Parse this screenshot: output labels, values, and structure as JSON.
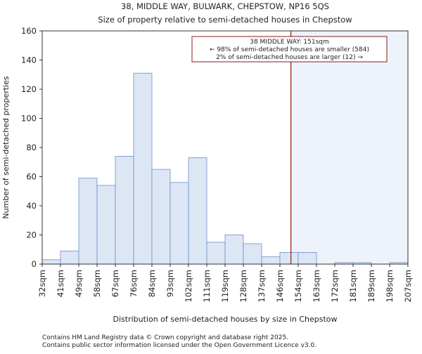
{
  "chart_data": {
    "type": "bar",
    "title": "38, MIDDLE WAY, BULWARK, CHEPSTOW, NP16 5QS",
    "subtitle": "Size of property relative to semi-detached houses in Chepstow",
    "xlabel": "Distribution of semi-detached houses by size in Chepstow",
    "ylabel": "Number of semi-detached properties",
    "ylim": [
      0,
      160
    ],
    "yticks": [
      0,
      20,
      40,
      60,
      80,
      100,
      120,
      140,
      160
    ],
    "xtick_labels": [
      "32sqm",
      "41sqm",
      "49sqm",
      "58sqm",
      "67sqm",
      "76sqm",
      "84sqm",
      "93sqm",
      "102sqm",
      "111sqm",
      "119sqm",
      "128sqm",
      "137sqm",
      "146sqm",
      "154sqm",
      "163sqm",
      "172sqm",
      "181sqm",
      "189sqm",
      "198sqm",
      "207sqm"
    ],
    "values": [
      3,
      9,
      59,
      54,
      74,
      131,
      65,
      56,
      73,
      15,
      20,
      14,
      5,
      8,
      8,
      0,
      1,
      1,
      0,
      1
    ],
    "marker_value_index": 13.6,
    "marker_label": "38 MIDDLE WAY: 151sqm",
    "annotation_lines": [
      "38 MIDDLE WAY: 151sqm",
      "← 98% of semi-detached houses are smaller (584)",
      "2% of semi-detached houses are larger (12) →"
    ],
    "bar_color": "#dce6f5",
    "bar_edge": "#6e8fc4",
    "marker_color": "#8b1a1a",
    "highlight_color": "#eef2fb",
    "grid": false
  },
  "footer": {
    "line1": "Contains HM Land Registry data © Crown copyright and database right 2025.",
    "line2": "Contains public sector information licensed under the Open Government Licence v3.0."
  }
}
